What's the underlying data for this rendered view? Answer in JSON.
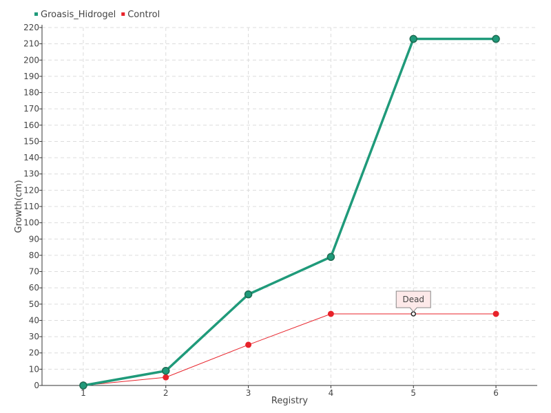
{
  "chart_data": {
    "type": "line",
    "categories": [
      "1",
      "2",
      "3",
      "4",
      "5",
      "6"
    ],
    "x": [
      1,
      2,
      3,
      4,
      5,
      6
    ],
    "xlabel": "Registry",
    "ylabel": "Growth(cm)",
    "ylim": [
      0,
      220
    ],
    "ytick_step": 10,
    "grid": true,
    "legend_position": "top-left",
    "series": [
      {
        "name": "Groasis_Hidrogel",
        "color": "#1f9a7a",
        "values": [
          0,
          9,
          56,
          79,
          213,
          213
        ]
      },
      {
        "name": "Control",
        "color": "#e8222a",
        "values": [
          0,
          5,
          25,
          44,
          44,
          44
        ]
      }
    ],
    "annotations": [
      {
        "series": "Control",
        "x": 5,
        "text": "Dead"
      }
    ]
  }
}
